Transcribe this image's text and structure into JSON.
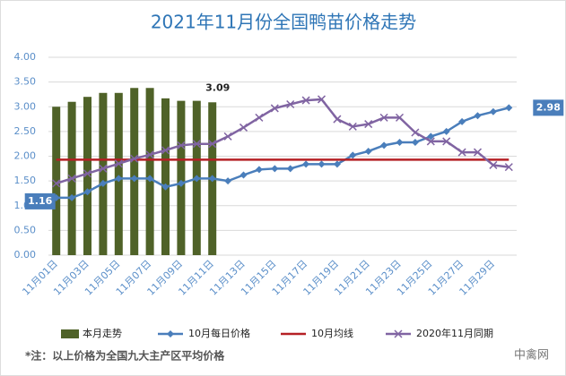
{
  "chart_data": {
    "type": "combo",
    "title": "2021年11月份全国鸭苗价格走势",
    "note": "*注：以上价格为全国九大主产区平均价格",
    "watermark": "中禽网",
    "categories": [
      "11月01日",
      null,
      "11月03日",
      null,
      "11月05日",
      null,
      "11月07日",
      null,
      "11月09日",
      null,
      "11月11日",
      null,
      "11月13日",
      null,
      "11月15日",
      null,
      "11月17日",
      null,
      "11月19日",
      null,
      "11月21日",
      null,
      "11月23日",
      null,
      "11月25日",
      null,
      "11月27日",
      null,
      "11月29日",
      null
    ],
    "ylim": [
      0,
      4
    ],
    "yticks": [
      {
        "value": 0,
        "label": "0.00"
      },
      {
        "value": 0.5,
        "label": "0.50"
      },
      {
        "value": 1,
        "label": "1.00"
      },
      {
        "value": 1.5,
        "label": "1.50"
      },
      {
        "value": 2,
        "label": "2.00"
      },
      {
        "value": 2.5,
        "label": "2.50"
      },
      {
        "value": 3,
        "label": "3.00"
      },
      {
        "value": 3.5,
        "label": "3.50"
      },
      {
        "value": 4,
        "label": "4.00"
      }
    ],
    "grid": true,
    "legend": "bottom",
    "series": [
      {
        "name": "本月走势",
        "kind": "bar",
        "color": "#4f6228",
        "values": [
          3.0,
          3.1,
          3.2,
          3.28,
          3.28,
          3.38,
          3.38,
          3.17,
          3.12,
          3.12,
          3.09,
          null,
          null,
          null,
          null,
          null,
          null,
          null,
          null,
          null,
          null,
          null,
          null,
          null,
          null,
          null,
          null,
          null,
          null,
          null
        ],
        "value_labels": [
          null,
          null,
          null,
          null,
          null,
          null,
          null,
          null,
          null,
          null,
          "3.09",
          null,
          null,
          null,
          null,
          null,
          null,
          null,
          null,
          null,
          null,
          null,
          null,
          null,
          null,
          null,
          null,
          null,
          null,
          null
        ]
      },
      {
        "name": "10月每日价格",
        "kind": "line",
        "marker": "diamond",
        "color": "#4a7ebb",
        "values": [
          1.16,
          1.16,
          1.28,
          1.45,
          1.55,
          1.55,
          1.55,
          1.38,
          1.45,
          1.55,
          1.55,
          1.5,
          1.62,
          1.73,
          1.75,
          1.75,
          1.84,
          1.84,
          1.84,
          2.02,
          2.1,
          2.22,
          2.28,
          2.28,
          2.4,
          2.5,
          2.7,
          2.82,
          2.9,
          2.98
        ],
        "value_labels": [
          "1.16",
          null,
          null,
          null,
          null,
          null,
          null,
          null,
          null,
          null,
          null,
          null,
          null,
          null,
          null,
          null,
          null,
          null,
          null,
          null,
          null,
          null,
          null,
          null,
          null,
          null,
          null,
          null,
          null,
          "2.98"
        ]
      },
      {
        "name": "10月均线",
        "kind": "line",
        "marker": "none",
        "color": "#b52025",
        "values": [
          1.93,
          1.93,
          1.93,
          1.93,
          1.93,
          1.93,
          1.93,
          1.93,
          1.93,
          1.93,
          1.93,
          1.93,
          1.93,
          1.93,
          1.93,
          1.93,
          1.93,
          1.93,
          1.93,
          1.93,
          1.93,
          1.93,
          1.93,
          1.93,
          1.93,
          1.93,
          1.93,
          1.93,
          1.93,
          1.93
        ]
      },
      {
        "name": "2020年11月同期",
        "kind": "line",
        "marker": "x",
        "color": "#8064a2",
        "values": [
          1.45,
          1.55,
          1.65,
          1.75,
          1.85,
          1.95,
          2.03,
          2.12,
          2.22,
          2.25,
          2.25,
          2.4,
          2.58,
          2.78,
          2.97,
          3.05,
          3.13,
          3.15,
          2.75,
          2.6,
          2.65,
          2.78,
          2.78,
          2.48,
          2.3,
          2.3,
          2.08,
          2.08,
          1.82,
          1.78
        ]
      }
    ]
  }
}
